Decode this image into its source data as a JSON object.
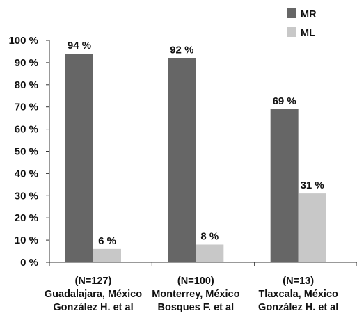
{
  "chart_data": {
    "type": "bar",
    "title": "",
    "xlabel": "",
    "ylabel": "",
    "ylim": [
      0,
      100
    ],
    "y_ticks": [
      "0 %",
      "10 %",
      "20 %",
      "30 %",
      "40 %",
      "50 %",
      "60 %",
      "70 %",
      "80 %",
      "90 %",
      "100 %"
    ],
    "categories": [
      [
        "(N=127)",
        "Guadalajara, México",
        "González H. et al"
      ],
      [
        "(N=100)",
        "Monterrey, México",
        "Bosques F. et al"
      ],
      [
        "(N=13)",
        "Tlaxcala, México",
        "González H. et al"
      ]
    ],
    "series": [
      {
        "name": "MR",
        "color": "#666666",
        "values": [
          94,
          92,
          69
        ],
        "labels": [
          "94 %",
          "92 %",
          "69 %"
        ]
      },
      {
        "name": "ML",
        "color": "#c8c8c8",
        "values": [
          6,
          8,
          31
        ],
        "labels": [
          "6 %",
          "8 %",
          "31 %"
        ]
      }
    ],
    "legend": "top-right",
    "grid": false
  }
}
